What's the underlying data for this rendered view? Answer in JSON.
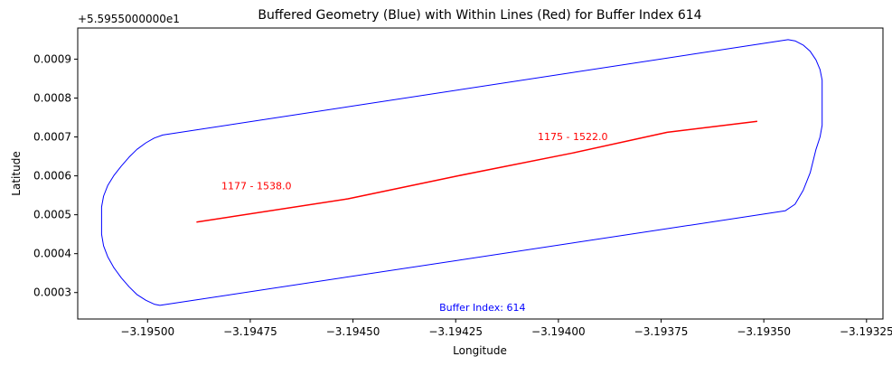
{
  "chart_data": {
    "type": "line",
    "title": "Buffered Geometry (Blue) with Within Lines (Red) for Buffer Index 614",
    "xlabel": "Longitude",
    "ylabel": "Latitude",
    "y_offset_label": "+5.5955000000e1",
    "xlim": [
      -3.19517,
      -3.19321
    ],
    "ylim": [
      0.000232,
      0.00098
    ],
    "x_ticks": [
      -3.195,
      -3.19475,
      -3.1945,
      -3.19425,
      -3.194,
      -3.19375,
      -3.1935,
      -3.19325
    ],
    "x_tick_labels": [
      "−3.19500",
      "−3.19475",
      "−3.19450",
      "−3.19425",
      "−3.19400",
      "−3.19375",
      "−3.19350",
      "−3.19325"
    ],
    "y_ticks": [
      0.0003,
      0.0004,
      0.0005,
      0.0006,
      0.0007,
      0.0008,
      0.0009
    ],
    "y_tick_labels": [
      "0.0003",
      "0.0004",
      "0.0005",
      "0.0006",
      "0.0007",
      "0.0008",
      "0.0009"
    ],
    "grid": false,
    "series": [
      {
        "role": "buffer",
        "color": "#0000ff",
        "x": [
          -3.194963,
          -3.193441,
          -3.193424,
          -3.193404,
          -3.193387,
          -3.193373,
          -3.193363,
          -3.193358,
          -3.193358,
          -3.193363,
          -3.193373,
          -3.193387,
          -3.193404,
          -3.193424,
          -3.193448,
          -3.19497,
          -3.194984,
          -3.195004,
          -3.195026,
          -3.195045,
          -3.195064,
          -3.195082,
          -3.195097,
          -3.195107,
          -3.195112,
          -3.195112,
          -3.195107,
          -3.195097,
          -3.195082,
          -3.195064,
          -3.195045,
          -3.195026,
          -3.195004,
          -3.194984,
          -3.194963
        ],
        "y": [
          0.000705,
          0.00095,
          0.000947,
          0.000936,
          0.00092,
          0.000898,
          0.000873,
          0.000846,
          0.00073,
          0.0007,
          0.000668,
          0.000608,
          0.000563,
          0.000527,
          0.00051,
          0.000267,
          0.00027,
          0.00028,
          0.000295,
          0.000315,
          0.000338,
          0.000364,
          0.000392,
          0.00042,
          0.00045,
          0.00052,
          0.000548,
          0.000575,
          0.000601,
          0.000625,
          0.000648,
          0.000668,
          0.000685,
          0.000697,
          0.000705
        ]
      },
      {
        "role": "line",
        "color": "#ff0000",
        "x": [
          -3.194881,
          -3.194512,
          -3.194245,
          -3.193964,
          -3.193735,
          -3.193516
        ],
        "y": [
          0.000481,
          0.000541,
          0.0006,
          0.000659,
          0.000712,
          0.00074
        ]
      }
    ],
    "annotations": [
      {
        "text": "1177 - 1538.0",
        "x": -3.194735,
        "y": 0.000575,
        "color": "#ff0000"
      },
      {
        "text": "1175 - 1522.0",
        "x": -3.193965,
        "y": 0.000701,
        "color": "#ff0000"
      },
      {
        "text": "Buffer Index: 614",
        "x": -3.194185,
        "y": 0.000262,
        "color": "#0000ff"
      }
    ]
  }
}
